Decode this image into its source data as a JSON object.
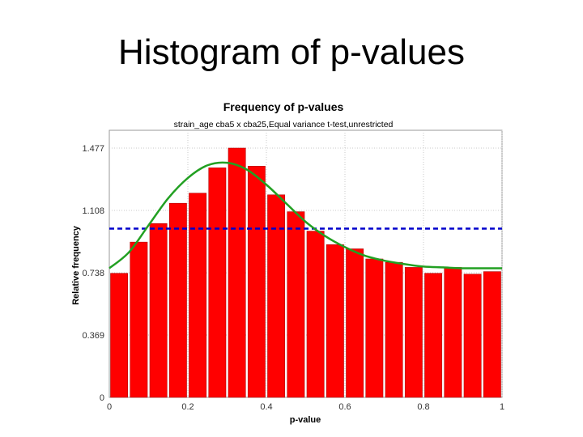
{
  "slide": {
    "title": "Histogram of p-values"
  },
  "colors": {
    "bar_fill": "#ff0000",
    "bar_stroke": "#b00000",
    "curve": "#22a022",
    "reference_line": "#0000cc",
    "gridline": "#c8c8c8"
  },
  "chart_data": {
    "type": "bar",
    "title": "Frequency of p-values",
    "subtitle": "strain_age cba5 x cba25,Equal variance t-test,unrestricted",
    "xlabel": "p-value",
    "ylabel": "Relative frequency",
    "xlim": [
      0,
      1
    ],
    "ylim": [
      0,
      1.477
    ],
    "x_ticks": [
      0,
      0.2,
      0.4,
      0.6,
      0.8,
      1
    ],
    "x_tick_labels": [
      "0",
      "0.2",
      "0.4",
      "0.6",
      "0.8",
      "1"
    ],
    "y_ticks": [
      0,
      0.369,
      0.738,
      1.108,
      1.477
    ],
    "y_tick_labels": [
      "0",
      "0.369",
      "0.738",
      "1.108",
      "1.477"
    ],
    "grid": true,
    "bin_width": 0.05,
    "bin_starts": [
      0,
      0.05,
      0.1,
      0.15,
      0.2,
      0.25,
      0.3,
      0.35,
      0.4,
      0.45,
      0.5,
      0.55,
      0.6,
      0.65,
      0.7,
      0.75,
      0.8,
      0.85,
      0.9,
      0.95
    ],
    "values": [
      0.735,
      0.92,
      1.03,
      1.15,
      1.21,
      1.36,
      1.477,
      1.37,
      1.2,
      1.1,
      0.985,
      0.905,
      0.88,
      0.82,
      0.8,
      0.77,
      0.735,
      0.77,
      0.73,
      0.745
    ],
    "reference_line": {
      "y": 1.0
    },
    "curve": {
      "x": [
        0,
        0.05,
        0.1,
        0.15,
        0.2,
        0.25,
        0.3,
        0.35,
        0.4,
        0.45,
        0.5,
        0.55,
        0.6,
        0.65,
        0.7,
        0.75,
        0.8,
        0.85,
        0.9,
        0.95,
        1.0
      ],
      "y": [
        0.765,
        0.86,
        1.02,
        1.18,
        1.3,
        1.375,
        1.39,
        1.35,
        1.26,
        1.15,
        1.04,
        0.955,
        0.89,
        0.84,
        0.81,
        0.79,
        0.775,
        0.77,
        0.765,
        0.765,
        0.765
      ]
    }
  }
}
